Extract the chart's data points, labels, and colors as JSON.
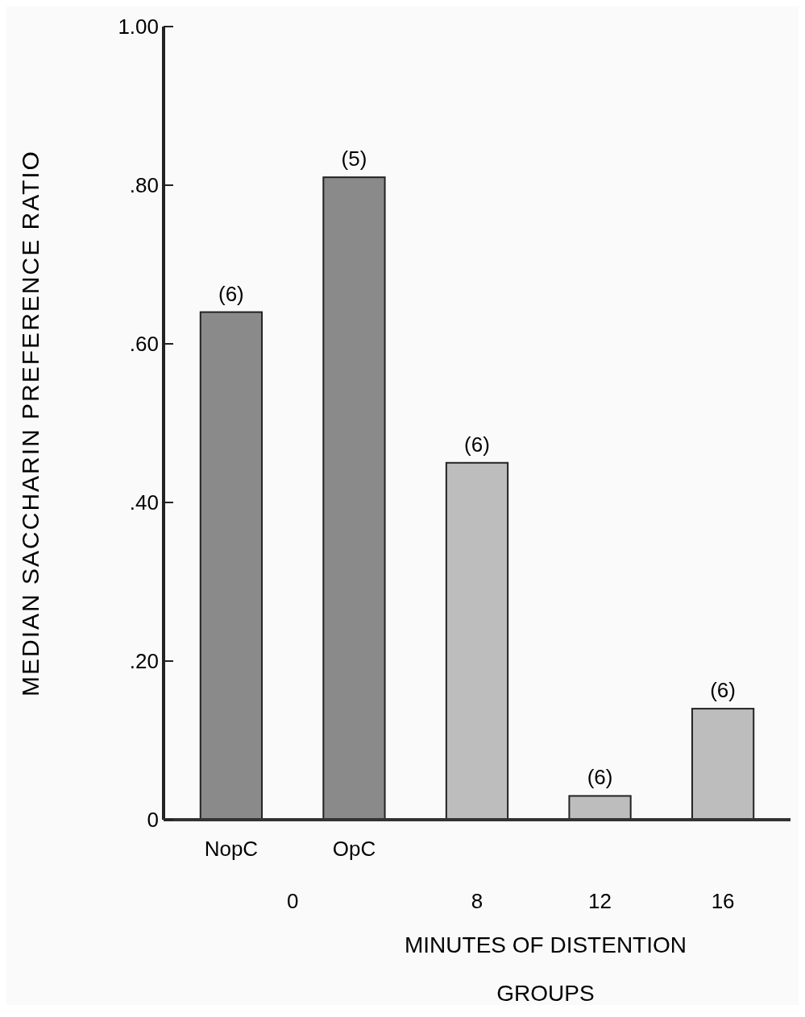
{
  "chart_data": {
    "type": "bar",
    "xlabel": "MINUTES OF DISTENTION",
    "ylabel": "MEDIAN SACCHARIN PREFERENCE RATIO",
    "categories": [
      "NopC",
      "OpC",
      "8",
      "12",
      "16"
    ],
    "values": [
      0.64,
      0.81,
      0.45,
      0.03,
      0.14
    ],
    "colors": [
      "#8a8a8a",
      "#8a8a8a",
      "#bdbdbd",
      "#bdbdbd",
      "#bdbdbd"
    ],
    "ylim": [
      0,
      1
    ],
    "yticks": [
      0,
      {
        "value": 0.2,
        "label": ".20"
      },
      {
        "value": 0.4,
        "label": ".40"
      },
      {
        "value": 0.6,
        "label": ".60"
      },
      {
        "value": 0.8,
        "label": ".80"
      },
      {
        "value": 1,
        "label": "1.00"
      }
    ],
    "annotations": [
      "0",
      "GROUPS",
      {
        "text": "(6)",
        "x": "NopC",
        "y": 0.64
      },
      {
        "text": "(5)",
        "x": "OpC",
        "y": 0.81
      },
      {
        "text": "(6)",
        "x": "8",
        "y": 0.45
      },
      {
        "text": "(6)",
        "x": "12",
        "y": 0.03
      },
      {
        "text": "(6)",
        "x": "16",
        "y": 0.14
      }
    ]
  }
}
